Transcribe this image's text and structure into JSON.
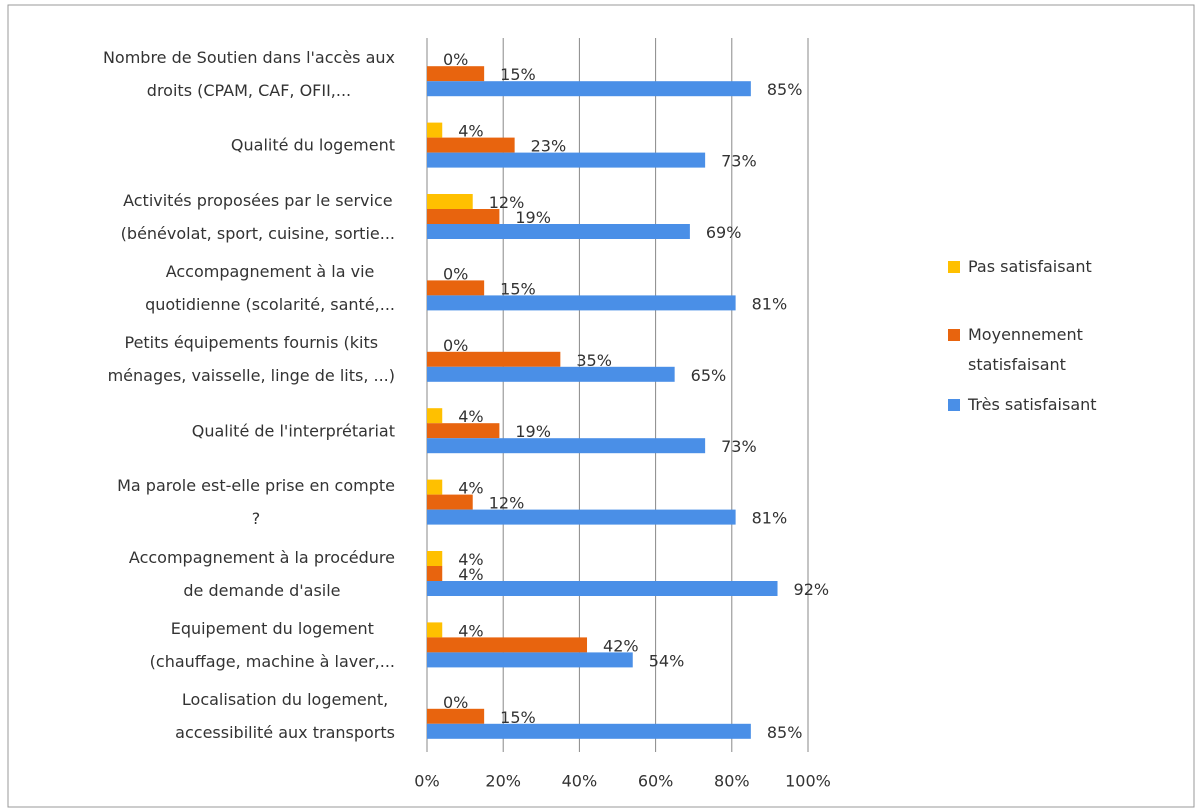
{
  "chart_data": {
    "type": "bar",
    "orientation": "horizontal",
    "categories": [
      "Nombre de Soutien dans l'accès aux\ndroits (CPAM, CAF, OFII,...",
      "Qualité du logement",
      "Activités proposées par le service\n(bénévolat, sport, cuisine, sortie...",
      "Accompagnement à la vie\nquotidienne (scolarité, santé,...",
      "Petits équipements fournis (kits\nménages, vaisselle, linge de lits, ...)",
      "Qualité de l'interprétariat",
      "Ma parole est-elle prise en compte\n?",
      "Accompagnement à la procédure\nde demande d'asile",
      "Equipement du logement\n(chauffage, machine à laver,...",
      "Localisation du logement,\naccessibilité aux transports"
    ],
    "series": [
      {
        "name": "Pas satisfaisant",
        "color": "#ffc000",
        "values": [
          0,
          4,
          12,
          0,
          0,
          4,
          4,
          4,
          4,
          0
        ],
        "value_labels": [
          "0%",
          "4%",
          "12%",
          "0%",
          "0%",
          "4%",
          "4%",
          "4%",
          "4%",
          "0%"
        ]
      },
      {
        "name": "Moyennement statisfaisant",
        "color": "#e8640e",
        "values": [
          15,
          23,
          19,
          15,
          35,
          19,
          12,
          4,
          42,
          15
        ],
        "value_labels": [
          "15%",
          "23%",
          "19%",
          "15%",
          "35%",
          "19%",
          "12%",
          "4%",
          "42%",
          "15%"
        ]
      },
      {
        "name": "Très satisfaisant",
        "color": "#4a8fe7",
        "values": [
          85,
          73,
          69,
          81,
          65,
          73,
          81,
          92,
          54,
          85
        ],
        "value_labels": [
          "85%",
          "73%",
          "69%",
          "81%",
          "65%",
          "73%",
          "81%",
          "92%",
          "54%",
          "85%"
        ]
      }
    ],
    "xlim": [
      0,
      100
    ],
    "xticks": [
      {
        "value": 0,
        "label": "0%"
      },
      {
        "value": 20,
        "label": "20%"
      },
      {
        "value": 40,
        "label": "40%"
      },
      {
        "value": 60,
        "label": "60%"
      },
      {
        "value": 80,
        "label": "80%"
      },
      {
        "value": 100,
        "label": "100%"
      }
    ],
    "grid": true,
    "legend": "right"
  }
}
